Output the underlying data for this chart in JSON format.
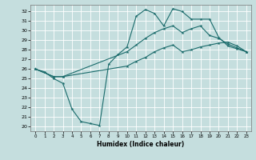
{
  "xlabel": "Humidex (Indice chaleur)",
  "xlim": [
    -0.5,
    23.5
  ],
  "ylim": [
    19.5,
    32.7
  ],
  "yticks": [
    20,
    21,
    22,
    23,
    24,
    25,
    26,
    27,
    28,
    29,
    30,
    31,
    32
  ],
  "xticks": [
    0,
    1,
    2,
    3,
    4,
    5,
    6,
    7,
    8,
    9,
    10,
    11,
    12,
    13,
    14,
    15,
    16,
    17,
    18,
    19,
    20,
    21,
    22,
    23
  ],
  "bg_color": "#c5dede",
  "line_color": "#1a6b6b",
  "line1_x": [
    0,
    1,
    2,
    3,
    4,
    5,
    6,
    7,
    8,
    9,
    10,
    11,
    12,
    13,
    14,
    15,
    16,
    17,
    18,
    19,
    20,
    21,
    22,
    23
  ],
  "line1_y": [
    26.0,
    25.7,
    25.0,
    24.5,
    21.8,
    20.5,
    20.3,
    20.1,
    26.5,
    27.5,
    28.3,
    31.5,
    32.2,
    31.8,
    30.5,
    32.3,
    32.0,
    31.2,
    31.2,
    31.2,
    29.3,
    28.4,
    28.1,
    27.8
  ],
  "line2_x": [
    0,
    2,
    3,
    10,
    11,
    12,
    13,
    14,
    15,
    16,
    17,
    18,
    19,
    20,
    21,
    22,
    23
  ],
  "line2_y": [
    26.0,
    25.2,
    25.2,
    27.8,
    28.5,
    29.2,
    29.8,
    30.2,
    30.5,
    29.8,
    30.2,
    30.5,
    29.5,
    29.2,
    28.6,
    28.2,
    27.8
  ],
  "line3_x": [
    0,
    2,
    3,
    10,
    11,
    12,
    13,
    14,
    15,
    16,
    17,
    18,
    19,
    20,
    21,
    22,
    23
  ],
  "line3_y": [
    26.0,
    25.2,
    25.2,
    26.3,
    26.8,
    27.2,
    27.8,
    28.2,
    28.5,
    27.8,
    28.0,
    28.3,
    28.5,
    28.7,
    28.8,
    28.4,
    27.8
  ]
}
